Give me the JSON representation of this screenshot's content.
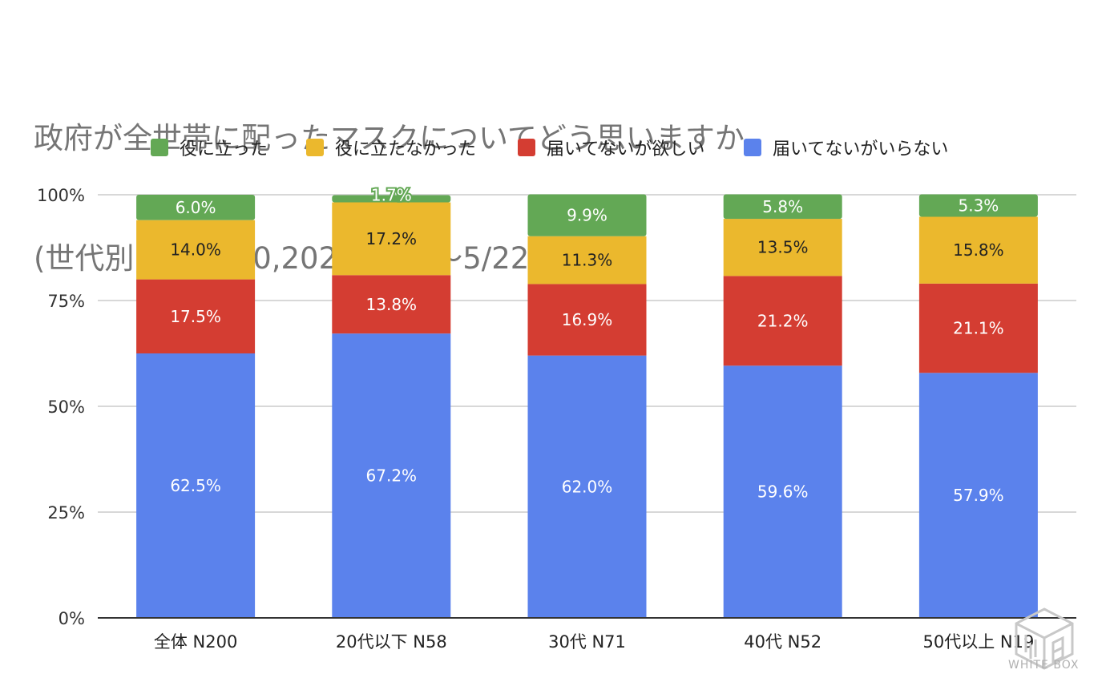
{
  "title": {
    "line1": "政府が全世帯に配ったマスクについてどう思いますか",
    "line2": "(世代別,SA,N200,2020/5/21〜5/22)"
  },
  "chart_data": {
    "type": "bar",
    "stacked": true,
    "percent_stacked": true,
    "categories": [
      "全体 N200",
      "20代以下 N58",
      "30代 N71",
      "40代 N52",
      "50代以上 N19"
    ],
    "series": [
      {
        "name": "届いてないがいらない",
        "color": "#5b82ec",
        "values": [
          62.5,
          67.2,
          62.0,
          59.6,
          57.9
        ],
        "labels": [
          "62.5%",
          "67.2%",
          "62.0%",
          "59.6%",
          "57.9%"
        ]
      },
      {
        "name": "届いてないが欲しい",
        "color": "#d43d32",
        "values": [
          17.5,
          13.8,
          16.9,
          21.2,
          21.1
        ],
        "labels": [
          "17.5%",
          "13.8%",
          "16.9%",
          "21.2%",
          "21.1%"
        ]
      },
      {
        "name": "役に立たなかった",
        "color": "#ebb82d",
        "values": [
          14.0,
          17.2,
          11.3,
          13.5,
          15.8
        ],
        "labels": [
          "14.0%",
          "17.2%",
          "11.3%",
          "13.5%",
          "15.8%"
        ]
      },
      {
        "name": "役に立った",
        "color": "#63a855",
        "values": [
          6.0,
          1.7,
          9.9,
          5.8,
          5.3
        ],
        "labels": [
          "6.0%",
          "1.7%",
          "9.9%",
          "5.8%",
          "5.3%"
        ]
      }
    ],
    "legend_order": [
      "役に立った",
      "役に立たなかった",
      "届いてないが欲しい",
      "届いてないがいらない"
    ],
    "ylim": [
      0,
      100
    ],
    "yticks": [
      "0%",
      "25%",
      "50%",
      "75%",
      "100%"
    ],
    "ytick_values": [
      0,
      25,
      50,
      75,
      100
    ],
    "grid": true,
    "legend_position": "top"
  },
  "watermark": {
    "text": "WHITE BOX"
  }
}
